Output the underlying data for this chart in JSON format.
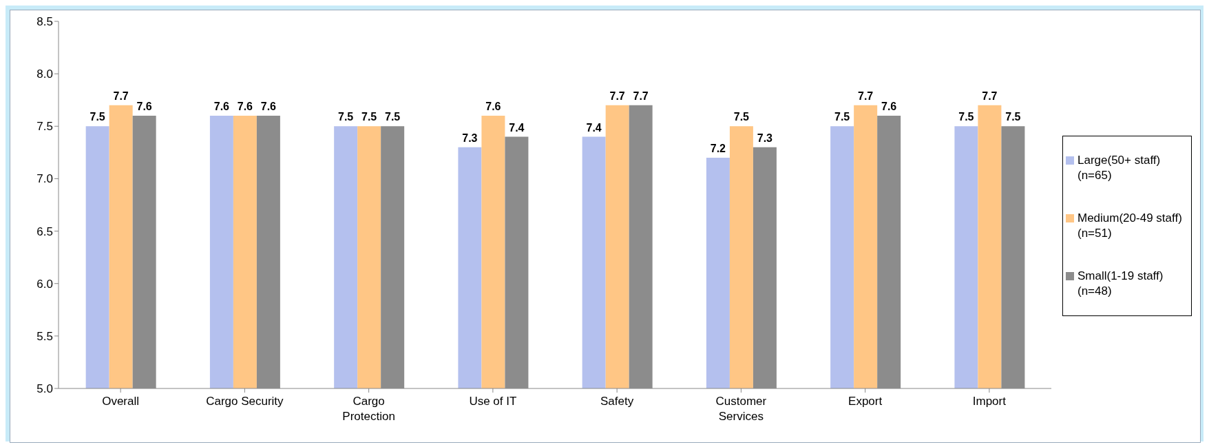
{
  "chart_data": {
    "type": "bar",
    "categories": [
      "Overall",
      "Cargo Security",
      "Cargo Protection",
      "Use of IT",
      "Safety",
      "Customer Services",
      "Export",
      "Import"
    ],
    "series": [
      {
        "name": "Large(50+ staff)(n=65)",
        "color": "#b4c0ee",
        "values": [
          7.5,
          7.6,
          7.5,
          7.3,
          7.4,
          7.2,
          7.5,
          7.5
        ]
      },
      {
        "name": "Medium(20-49 staff)(n=51)",
        "color": "#ffc685",
        "values": [
          7.7,
          7.6,
          7.5,
          7.6,
          7.7,
          7.5,
          7.7,
          7.7
        ]
      },
      {
        "name": "Small(1-19 staff)(n=48)",
        "color": "#8c8c8c",
        "values": [
          7.6,
          7.6,
          7.5,
          7.4,
          7.7,
          7.3,
          7.6,
          7.5
        ]
      }
    ],
    "ylim": [
      5,
      8.5
    ],
    "yticks": [
      {
        "value": 5,
        "label": "5.0"
      },
      {
        "value": 5.5,
        "label": "5.5"
      },
      {
        "value": 6,
        "label": "6.0"
      },
      {
        "value": 6.5,
        "label": "6.5"
      },
      {
        "value": 7,
        "label": "7.0"
      },
      {
        "value": 7.5,
        "label": "7.5"
      },
      {
        "value": 8,
        "label": "8.0"
      },
      {
        "value": 8.5,
        "label": "8.5"
      }
    ],
    "grid": false,
    "legend": "right",
    "data_labels": true
  }
}
